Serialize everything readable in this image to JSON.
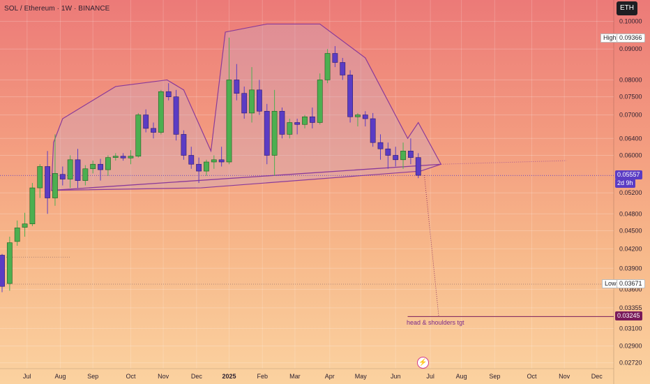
{
  "header": {
    "title": "SOL / Ethereum · 1W · BINANCE",
    "currency_badge": "ETH"
  },
  "colors": {
    "up": "#4caf50",
    "down": "#5b3cc4",
    "pattern": "#8a3a9a",
    "target": "#7a1a5a"
  },
  "chart_data": {
    "type": "candlestick",
    "symbol": "SOL / Ethereum",
    "timeframe": "1W",
    "exchange": "BINANCE",
    "y_scale": "log",
    "ylim": [
      0.0266,
      0.1085
    ],
    "y_ticks": [
      "0.10000",
      "0.09000",
      "0.08000",
      "0.07500",
      "0.07000",
      "0.06400",
      "0.06000",
      "0.05200",
      "0.04800",
      "0.04500",
      "0.04200",
      "0.03900",
      "0.03600",
      "0.03355",
      "0.03100",
      "0.02900",
      "0.02720"
    ],
    "y_tick_values": [
      0.1,
      0.09,
      0.08,
      0.075,
      0.07,
      0.064,
      0.06,
      0.052,
      0.048,
      0.045,
      0.042,
      0.039,
      0.036,
      0.03355,
      0.031,
      0.029,
      0.0272
    ],
    "x_labels": [
      "Jul",
      "Aug",
      "Sep",
      "Oct",
      "Nov",
      "Dec",
      "2025",
      "Feb",
      "Mar",
      "Apr",
      "May",
      "Jun",
      "Jul",
      "Aug",
      "Sep",
      "Oct",
      "Nov",
      "Dec"
    ],
    "x_label_weeks": [
      3.3,
      7.7,
      12.0,
      17.0,
      21.3,
      25.7,
      30.0,
      34.4,
      38.7,
      43.3,
      47.4,
      52.0,
      56.6,
      60.7,
      65.1,
      70.0,
      74.3,
      78.6
    ],
    "candles": [
      {
        "o": 0.041,
        "h": 0.0412,
        "l": 0.0356,
        "c": 0.0364
      },
      {
        "o": 0.0368,
        "h": 0.044,
        "l": 0.0358,
        "c": 0.043
      },
      {
        "o": 0.0432,
        "h": 0.0468,
        "l": 0.0425,
        "c": 0.0455
      },
      {
        "o": 0.0456,
        "h": 0.0482,
        "l": 0.044,
        "c": 0.0462
      },
      {
        "o": 0.0462,
        "h": 0.054,
        "l": 0.0458,
        "c": 0.053
      },
      {
        "o": 0.053,
        "h": 0.058,
        "l": 0.051,
        "c": 0.0575
      },
      {
        "o": 0.0575,
        "h": 0.061,
        "l": 0.048,
        "c": 0.051
      },
      {
        "o": 0.051,
        "h": 0.065,
        "l": 0.0495,
        "c": 0.056
      },
      {
        "o": 0.0558,
        "h": 0.0575,
        "l": 0.0535,
        "c": 0.0548
      },
      {
        "o": 0.0548,
        "h": 0.06,
        "l": 0.053,
        "c": 0.059
      },
      {
        "o": 0.059,
        "h": 0.0615,
        "l": 0.053,
        "c": 0.0545
      },
      {
        "o": 0.0545,
        "h": 0.0578,
        "l": 0.0535,
        "c": 0.057
      },
      {
        "o": 0.057,
        "h": 0.0588,
        "l": 0.056,
        "c": 0.058
      },
      {
        "o": 0.058,
        "h": 0.0592,
        "l": 0.0545,
        "c": 0.0568
      },
      {
        "o": 0.0568,
        "h": 0.06,
        "l": 0.0555,
        "c": 0.0595
      },
      {
        "o": 0.0595,
        "h": 0.0605,
        "l": 0.0588,
        "c": 0.0598
      },
      {
        "o": 0.0598,
        "h": 0.0605,
        "l": 0.0588,
        "c": 0.0594
      },
      {
        "o": 0.0594,
        "h": 0.0612,
        "l": 0.058,
        "c": 0.0598
      },
      {
        "o": 0.0598,
        "h": 0.0705,
        "l": 0.0595,
        "c": 0.07
      },
      {
        "o": 0.07,
        "h": 0.0715,
        "l": 0.0655,
        "c": 0.0665
      },
      {
        "o": 0.0665,
        "h": 0.068,
        "l": 0.064,
        "c": 0.0655
      },
      {
        "o": 0.0655,
        "h": 0.077,
        "l": 0.065,
        "c": 0.0765
      },
      {
        "o": 0.0765,
        "h": 0.079,
        "l": 0.074,
        "c": 0.075
      },
      {
        "o": 0.075,
        "h": 0.077,
        "l": 0.0635,
        "c": 0.065
      },
      {
        "o": 0.065,
        "h": 0.066,
        "l": 0.059,
        "c": 0.06
      },
      {
        "o": 0.06,
        "h": 0.062,
        "l": 0.057,
        "c": 0.058
      },
      {
        "o": 0.058,
        "h": 0.0595,
        "l": 0.054,
        "c": 0.0565
      },
      {
        "o": 0.0565,
        "h": 0.059,
        "l": 0.0555,
        "c": 0.0585
      },
      {
        "o": 0.0585,
        "h": 0.06,
        "l": 0.057,
        "c": 0.059
      },
      {
        "o": 0.059,
        "h": 0.062,
        "l": 0.0575,
        "c": 0.0585
      },
      {
        "o": 0.0585,
        "h": 0.094,
        "l": 0.058,
        "c": 0.08
      },
      {
        "o": 0.08,
        "h": 0.085,
        "l": 0.074,
        "c": 0.076
      },
      {
        "o": 0.076,
        "h": 0.078,
        "l": 0.069,
        "c": 0.0705
      },
      {
        "o": 0.0705,
        "h": 0.084,
        "l": 0.068,
        "c": 0.077
      },
      {
        "o": 0.077,
        "h": 0.08,
        "l": 0.07,
        "c": 0.071
      },
      {
        "o": 0.071,
        "h": 0.073,
        "l": 0.058,
        "c": 0.06
      },
      {
        "o": 0.06,
        "h": 0.077,
        "l": 0.0555,
        "c": 0.071
      },
      {
        "o": 0.071,
        "h": 0.072,
        "l": 0.064,
        "c": 0.065
      },
      {
        "o": 0.065,
        "h": 0.069,
        "l": 0.064,
        "c": 0.068
      },
      {
        "o": 0.068,
        "h": 0.069,
        "l": 0.065,
        "c": 0.0675
      },
      {
        "o": 0.0675,
        "h": 0.07,
        "l": 0.0665,
        "c": 0.0695
      },
      {
        "o": 0.0695,
        "h": 0.072,
        "l": 0.0665,
        "c": 0.068
      },
      {
        "o": 0.068,
        "h": 0.082,
        "l": 0.0675,
        "c": 0.08
      },
      {
        "o": 0.08,
        "h": 0.09,
        "l": 0.079,
        "c": 0.0885
      },
      {
        "o": 0.0885,
        "h": 0.091,
        "l": 0.084,
        "c": 0.0855
      },
      {
        "o": 0.0855,
        "h": 0.087,
        "l": 0.08,
        "c": 0.0815
      },
      {
        "o": 0.0815,
        "h": 0.083,
        "l": 0.068,
        "c": 0.0695
      },
      {
        "o": 0.0695,
        "h": 0.0705,
        "l": 0.067,
        "c": 0.07
      },
      {
        "o": 0.07,
        "h": 0.071,
        "l": 0.067,
        "c": 0.069
      },
      {
        "o": 0.069,
        "h": 0.0705,
        "l": 0.062,
        "c": 0.063
      },
      {
        "o": 0.063,
        "h": 0.065,
        "l": 0.059,
        "c": 0.0615
      },
      {
        "o": 0.0615,
        "h": 0.063,
        "l": 0.057,
        "c": 0.06
      },
      {
        "o": 0.06,
        "h": 0.062,
        "l": 0.0575,
        "c": 0.059
      },
      {
        "o": 0.059,
        "h": 0.063,
        "l": 0.057,
        "c": 0.061
      },
      {
        "o": 0.061,
        "h": 0.064,
        "l": 0.058,
        "c": 0.0595
      },
      {
        "o": 0.0595,
        "h": 0.0605,
        "l": 0.055,
        "c": 0.0556
      }
    ],
    "head_and_shoulders": [
      {
        "w": 6.5,
        "p": 0.0525
      },
      {
        "w": 6.8,
        "p": 0.063
      },
      {
        "w": 8.0,
        "p": 0.069
      },
      {
        "w": 15.0,
        "p": 0.078
      },
      {
        "w": 21.8,
        "p": 0.08
      },
      {
        "w": 24.0,
        "p": 0.077
      },
      {
        "w": 27.6,
        "p": 0.061
      },
      {
        "w": 29.5,
        "p": 0.096
      },
      {
        "w": 35.0,
        "p": 0.099
      },
      {
        "w": 42.0,
        "p": 0.099
      },
      {
        "w": 48.0,
        "p": 0.087
      },
      {
        "w": 53.6,
        "p": 0.064
      },
      {
        "w": 55.0,
        "p": 0.068
      },
      {
        "w": 58.0,
        "p": 0.058
      },
      {
        "w": 55.3,
        "p": 0.0565
      },
      {
        "w": 26.3,
        "p": 0.053
      },
      {
        "w": 6.5,
        "p": 0.0525
      }
    ],
    "neckline_start": {
      "w": 6.5,
      "p": 0.0525
    },
    "neckline_end": {
      "w": 58.0,
      "p": 0.058
    },
    "neckline_extension": {
      "w": 74.6,
      "p": 0.0588
    },
    "projection_start": {
      "w": 55.8,
      "p": 0.0556
    },
    "projection_end": {
      "w": 57.7,
      "p": 0.0325
    },
    "current_price_line": 0.05557,
    "target_line": 0.03245,
    "low_line": 0.03671,
    "extra_level": {
      "p": 0.0407,
      "w1": 0.0,
      "w2": 9.0
    }
  },
  "labels": {
    "high": {
      "tag": "High",
      "value": "0.09366",
      "price": 0.09366
    },
    "low": {
      "tag": "Low",
      "value": "0.03671",
      "price": 0.03671
    },
    "current": {
      "value": "0.05557",
      "countdown": "2d 9h",
      "price": 0.05557
    },
    "target": {
      "value": "0.03245",
      "price": 0.03245
    },
    "annotation": "head & shoulders tgt"
  }
}
